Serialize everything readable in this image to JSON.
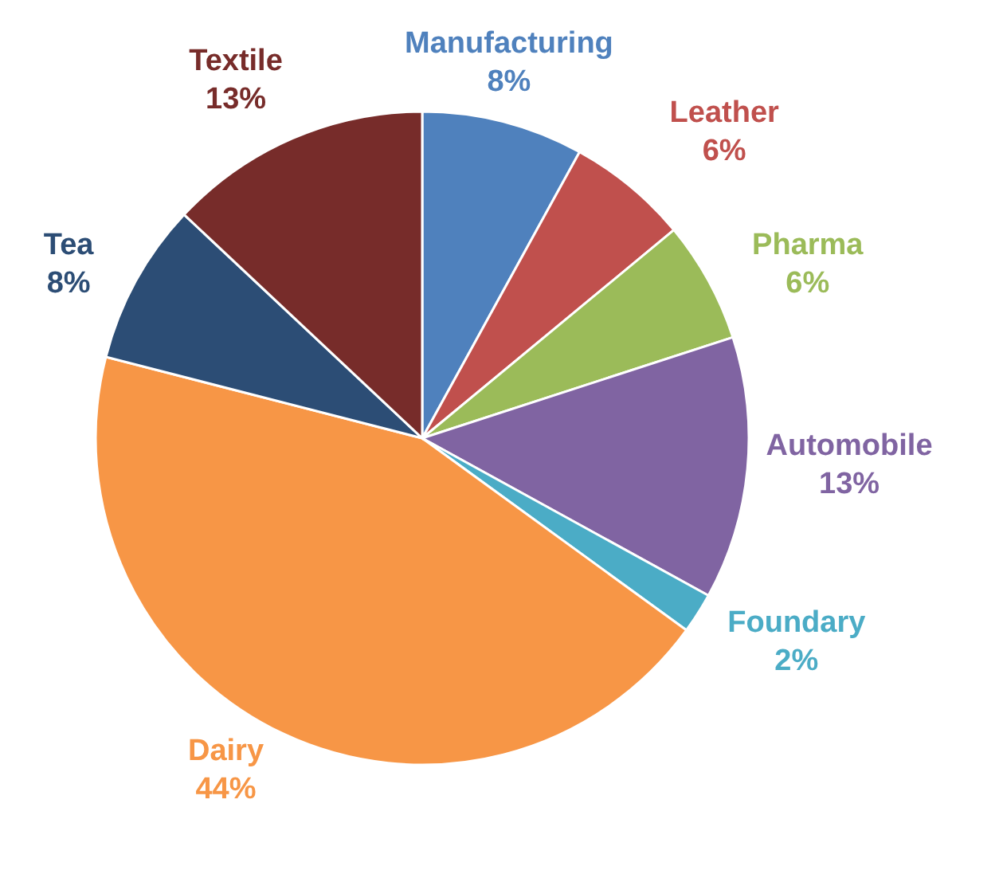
{
  "chart_data": {
    "type": "pie",
    "categories": [
      "Manufacturing",
      "Leather",
      "Pharma",
      "Automobile",
      "Foundary",
      "Dairy",
      "Tea",
      "Textile"
    ],
    "values": [
      8,
      6,
      6,
      13,
      2,
      44,
      8,
      13
    ],
    "colors": [
      "#4f81bd",
      "#c0504d",
      "#9bbb59",
      "#8064a2",
      "#4bacc6",
      "#f79646",
      "#2c4d75",
      "#772c2a"
    ],
    "value_labels": [
      "8%",
      "6%",
      "6%",
      "13%",
      "2%",
      "44%",
      "8%",
      "13%"
    ],
    "legend": false
  }
}
